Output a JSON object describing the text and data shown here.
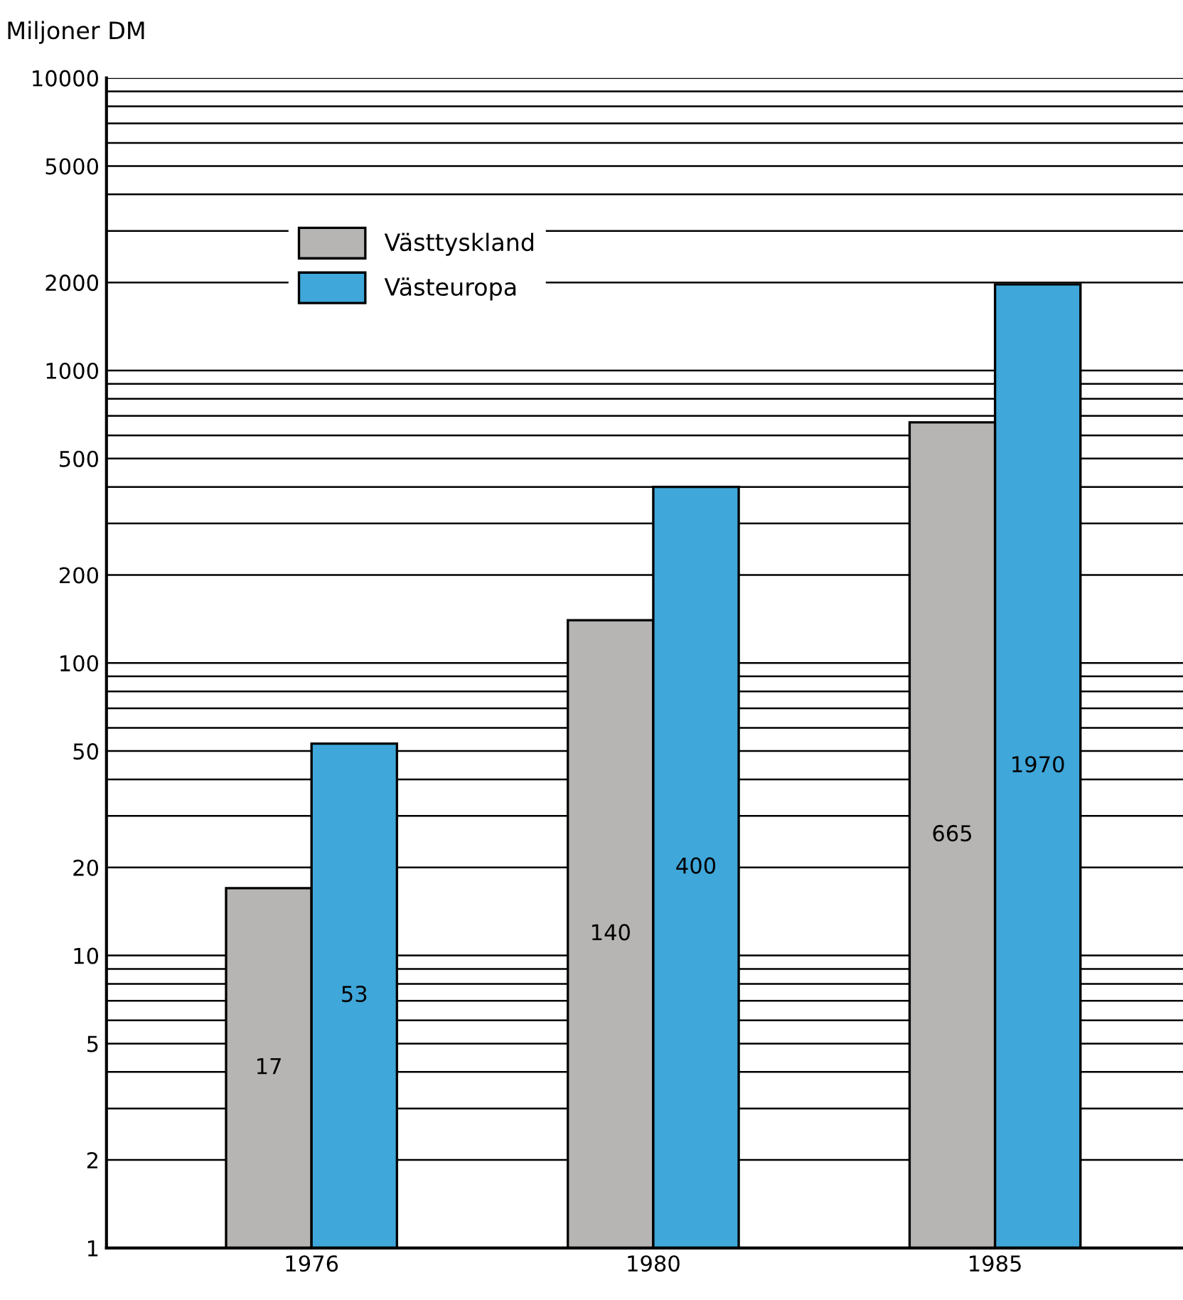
{
  "chart_data": {
    "type": "bar",
    "ylabel": "Miljoner DM",
    "categories": [
      "1976",
      "1980",
      "1985"
    ],
    "series": [
      {
        "name": "Västtyskland",
        "color": "#b7b5b3",
        "values": [
          17,
          140,
          665
        ]
      },
      {
        "name": "Västeuropa",
        "color": "#3fa7da",
        "values": [
          53,
          400,
          1970
        ]
      }
    ],
    "log": true,
    "ylim": [
      1,
      10000
    ],
    "yticks": [
      1,
      2,
      {
        "value": 3,
        "label": null
      },
      {
        "value": 4,
        "label": null
      },
      5,
      {
        "value": 6,
        "label": null
      },
      {
        "value": 7,
        "label": null
      },
      {
        "value": 8,
        "label": null
      },
      {
        "value": 9,
        "label": null
      },
      10,
      20,
      {
        "value": 30,
        "label": null
      },
      {
        "value": 40,
        "label": null
      },
      50,
      {
        "value": 60,
        "label": null
      },
      {
        "value": 70,
        "label": null
      },
      {
        "value": 80,
        "label": null
      },
      {
        "value": 90,
        "label": null
      },
      100,
      200,
      {
        "value": 300,
        "label": null
      },
      {
        "value": 400,
        "label": null
      },
      500,
      {
        "value": 600,
        "label": null
      },
      {
        "value": 700,
        "label": null
      },
      {
        "value": 800,
        "label": null
      },
      {
        "value": 900,
        "label": null
      },
      1000,
      2000,
      {
        "value": 3000,
        "label": null
      },
      {
        "value": 4000,
        "label": null
      },
      5000,
      {
        "value": 6000,
        "label": null
      },
      {
        "value": 7000,
        "label": null
      },
      {
        "value": 8000,
        "label": null
      },
      {
        "value": 9000,
        "label": null
      },
      10000
    ],
    "grid": "y",
    "legend": "top left",
    "data_labels": true
  }
}
